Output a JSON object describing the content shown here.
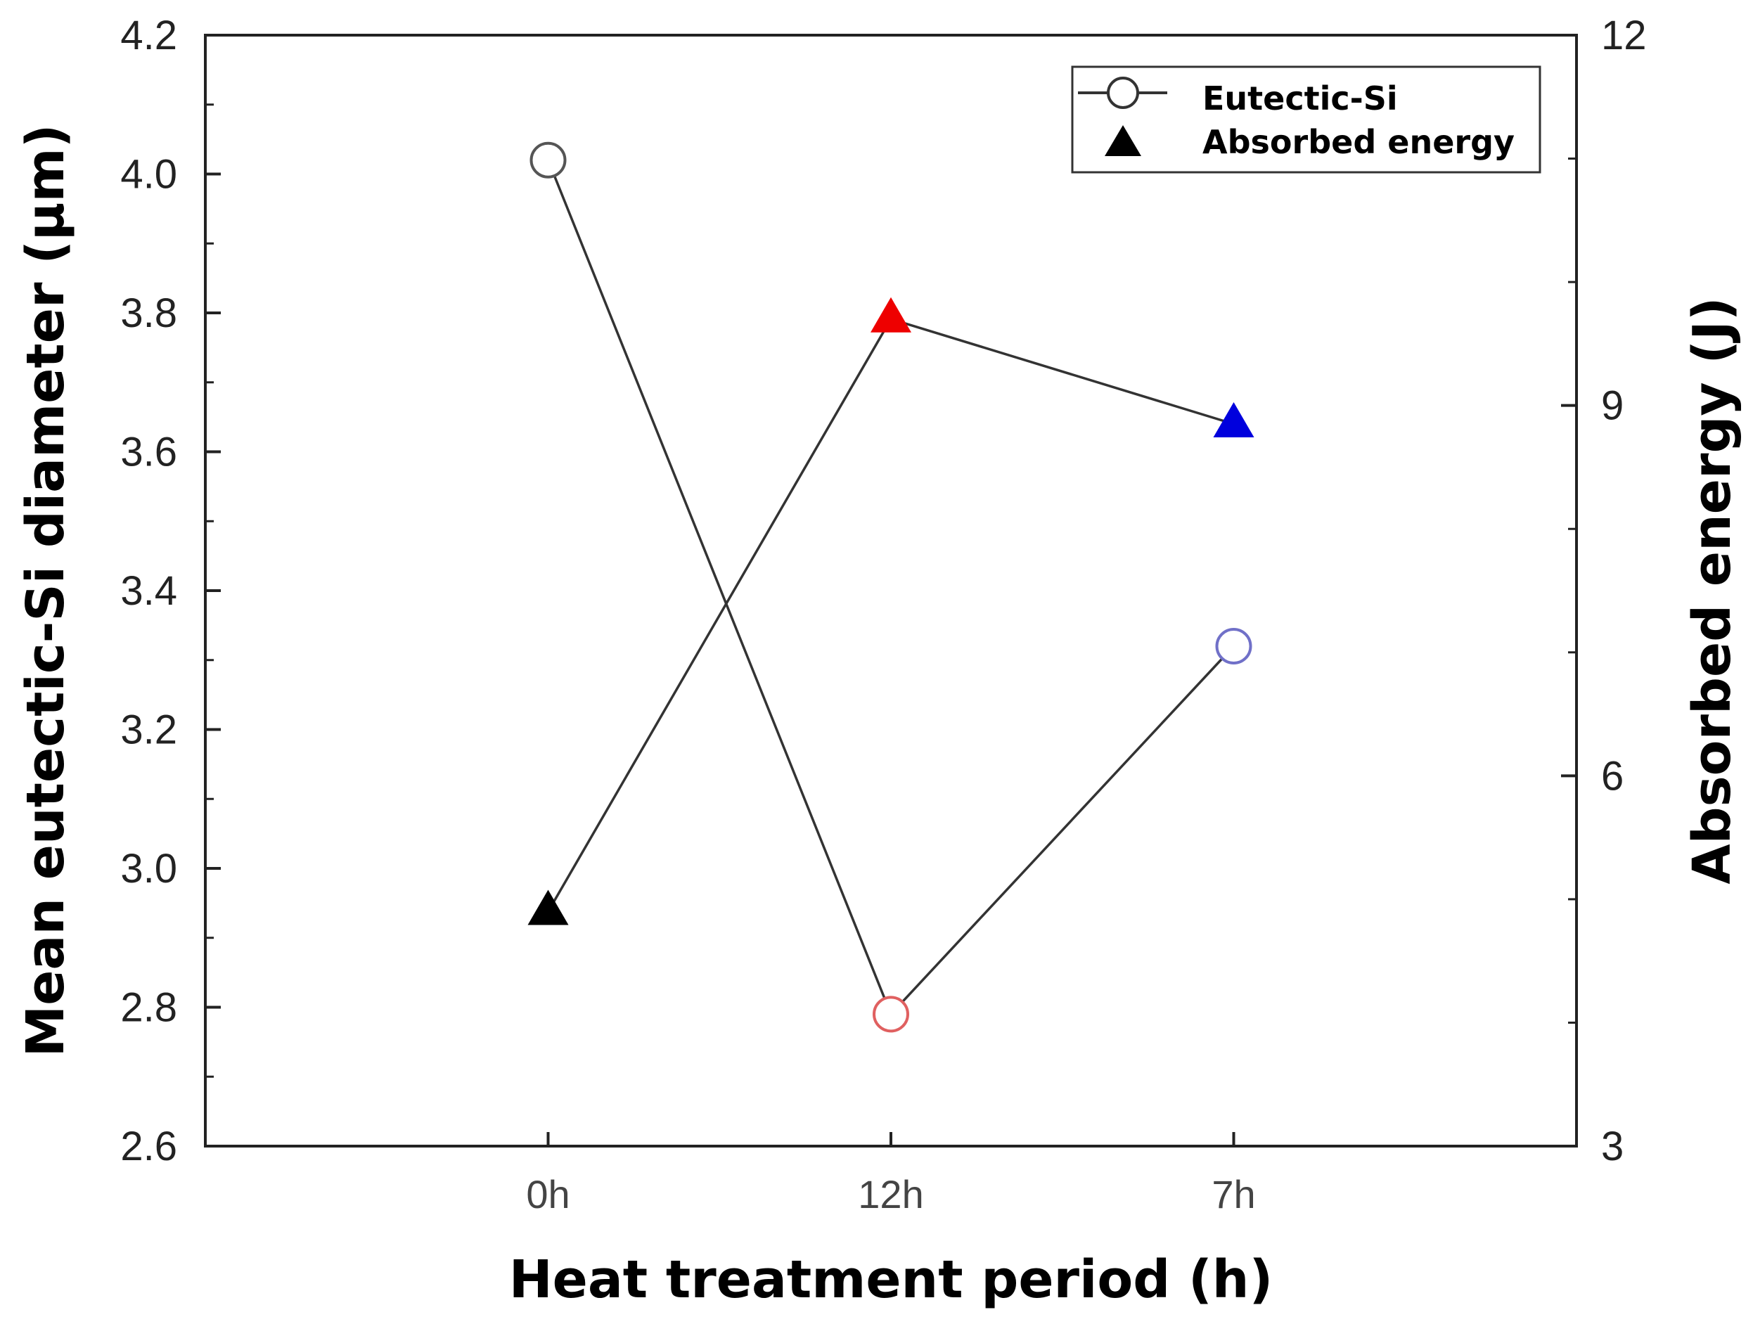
{
  "chart_data": {
    "type": "line",
    "categories": [
      "0h",
      "12h",
      "7h"
    ],
    "series": [
      {
        "name": "Eutectic-Si",
        "axis": "left",
        "marker": "open-circle",
        "values": [
          4.02,
          2.79,
          3.32
        ],
        "point_colors": [
          "#555555",
          "#e06060",
          "#7070c8"
        ]
      },
      {
        "name": "Absorbed energy",
        "axis": "right",
        "marker": "filled-triangle",
        "values": [
          4.9,
          9.7,
          8.85
        ],
        "point_colors": [
          "#000000",
          "#ee0000",
          "#0000dd"
        ]
      }
    ],
    "xlabel": "Heat treatment period (h)",
    "ylabel_left": "Mean eutectic-Si diameter (μm)",
    "ylabel_right": "Absorbed energy (J)",
    "ylim_left": [
      2.6,
      4.2
    ],
    "yticks_left": [
      "2.6",
      "2.8",
      "3.0",
      "3.2",
      "3.4",
      "3.6",
      "3.8",
      "4.0",
      "4.2"
    ],
    "ylim_right": [
      3,
      12
    ],
    "yticks_right": [
      "3",
      "6",
      "9",
      "12"
    ],
    "legend_position": "top-right",
    "grid": false
  }
}
